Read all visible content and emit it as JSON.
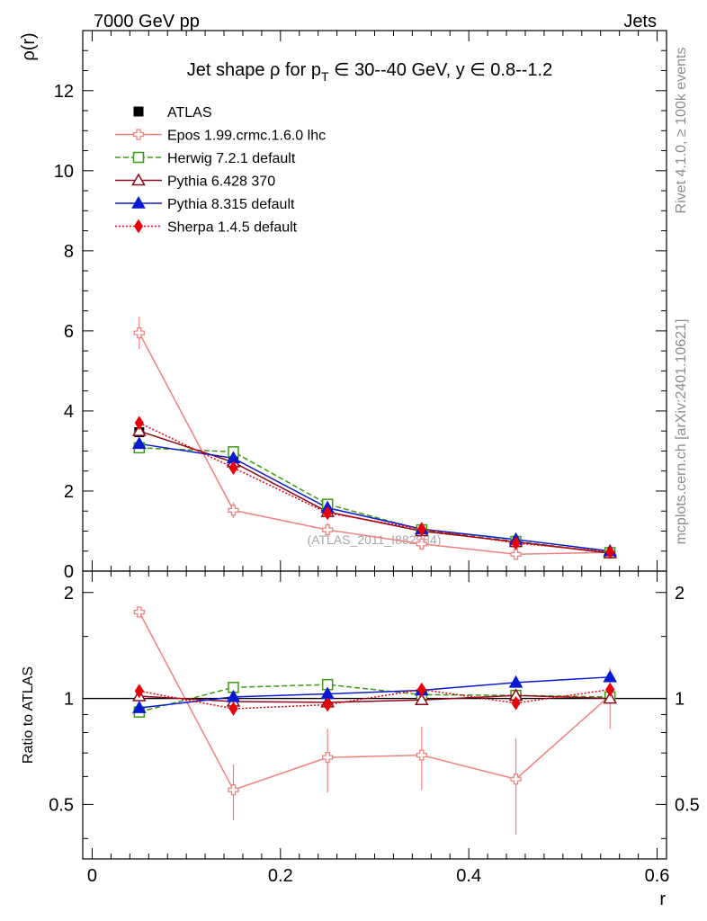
{
  "header": {
    "left_label": "7000 GeV pp",
    "right_label": "Jets",
    "side_rivet": "Rivet 4.1.0, ≥ 100k events",
    "side_mcplots": "mcplots.cern.ch [arXiv:2401.10621]",
    "watermark": "(ATLAS_2011_I882984)"
  },
  "chart_data": {
    "type": "line",
    "title": "Jet shape ρ for p_T ∈ 30--40 GeV, y ∈ 0.8--1.2",
    "title_parts": {
      "pre": "Jet shape ρ for p",
      "sub": "T",
      "post": " ∈ 30--40 GeV, y ∈ 0.8--1.2"
    },
    "ylabel": "ρ(r)",
    "xlabel": "r",
    "ratio_ylabel": "Ratio to ATLAS",
    "xlim": [
      -0.01,
      0.61
    ],
    "ylim": [
      0,
      13.5
    ],
    "ratio_ylim": [
      0.35,
      2.3
    ],
    "x_ticks": [
      {
        "value": 0,
        "label": "0"
      },
      {
        "value": 0.2,
        "label": "0.2"
      },
      {
        "value": 0.4,
        "label": "0.4"
      },
      {
        "value": 0.6,
        "label": "0.6"
      }
    ],
    "y_ticks": [
      {
        "value": 0,
        "label": "0"
      },
      {
        "value": 2,
        "label": "2"
      },
      {
        "value": 4,
        "label": "4"
      },
      {
        "value": 6,
        "label": "6"
      },
      {
        "value": 8,
        "label": "8"
      },
      {
        "value": 10,
        "label": "10"
      },
      {
        "value": 12,
        "label": "12"
      }
    ],
    "ratio_ticks": [
      {
        "value": 0.5,
        "label": "0.5"
      },
      {
        "value": 1,
        "label": "1"
      },
      {
        "value": 2,
        "label": "2"
      }
    ],
    "x": [
      0.05,
      0.15,
      0.25,
      0.35,
      0.45,
      0.55
    ],
    "xerr": 0.05,
    "data": {
      "name": "ATLAS",
      "values": [
        3.47,
        2.78,
        1.52,
        1.0,
        0.72,
        0.45
      ],
      "errors": [
        0.06,
        0.05,
        0.04,
        0.03,
        0.03,
        0.02
      ]
    },
    "series": [
      {
        "name": "Epos 1.99.crmc.1.6.0 lhc",
        "color": "#f08080",
        "dash": "",
        "marker": "cross-open",
        "values": [
          5.95,
          1.52,
          1.03,
          0.68,
          0.42,
          0.47
        ],
        "errors": [
          0.4,
          0.2,
          0.18,
          0.15,
          0.12,
          0.09
        ],
        "ratio": [
          1.76,
          0.55,
          0.68,
          0.69,
          0.59,
          1.02
        ],
        "ratio_errors": [
          0.05,
          0.1,
          0.14,
          0.14,
          0.18,
          0.2
        ]
      },
      {
        "name": "Herwig 7.2.1 default",
        "color": "#3a9a12",
        "dash": "6,3",
        "marker": "square-open",
        "values": [
          3.08,
          2.98,
          1.67,
          1.03,
          0.74,
          0.46
        ],
        "errors": [
          0.05,
          0.05,
          0.03,
          0.03,
          0.03,
          0.02
        ],
        "ratio": [
          0.915,
          1.075,
          1.095,
          1.025,
          1.02,
          1.01
        ],
        "ratio_errors": [
          0.015,
          0.015,
          0.015,
          0.02,
          0.02,
          0.02
        ]
      },
      {
        "name": "Pythia 6.428 370",
        "color": "#8b0a1a",
        "dash": "",
        "marker": "triangle-open",
        "values": [
          3.5,
          2.72,
          1.48,
          1.0,
          0.73,
          0.45
        ],
        "errors": [
          0.05,
          0.05,
          0.03,
          0.03,
          0.03,
          0.02
        ],
        "ratio": [
          1.015,
          0.98,
          0.975,
          0.99,
          1.02,
          1.0
        ],
        "ratio_errors": [
          0.015,
          0.015,
          0.015,
          0.02,
          0.02,
          0.02
        ]
      },
      {
        "name": "Pythia 8.315 default",
        "color": "#0a1ad0",
        "dash": "",
        "marker": "triangle",
        "values": [
          3.18,
          2.82,
          1.58,
          1.05,
          0.79,
          0.5
        ],
        "errors": [
          0.05,
          0.05,
          0.03,
          0.03,
          0.03,
          0.02
        ],
        "ratio": [
          0.94,
          1.01,
          1.03,
          1.055,
          1.11,
          1.15
        ],
        "ratio_errors": [
          0.015,
          0.015,
          0.015,
          0.02,
          0.025,
          0.025
        ]
      },
      {
        "name": "Sherpa 1.4.5 default",
        "color": "#e8000b",
        "dash": "2,2",
        "marker": "diamond",
        "values": [
          3.7,
          2.58,
          1.45,
          1.05,
          0.7,
          0.48
        ],
        "errors": [
          0.05,
          0.05,
          0.03,
          0.03,
          0.03,
          0.02
        ],
        "ratio": [
          1.05,
          0.935,
          0.96,
          1.06,
          0.97,
          1.06
        ],
        "ratio_errors": [
          0.015,
          0.015,
          0.015,
          0.02,
          0.02,
          0.02
        ]
      }
    ],
    "legend_placement": "top-left"
  }
}
